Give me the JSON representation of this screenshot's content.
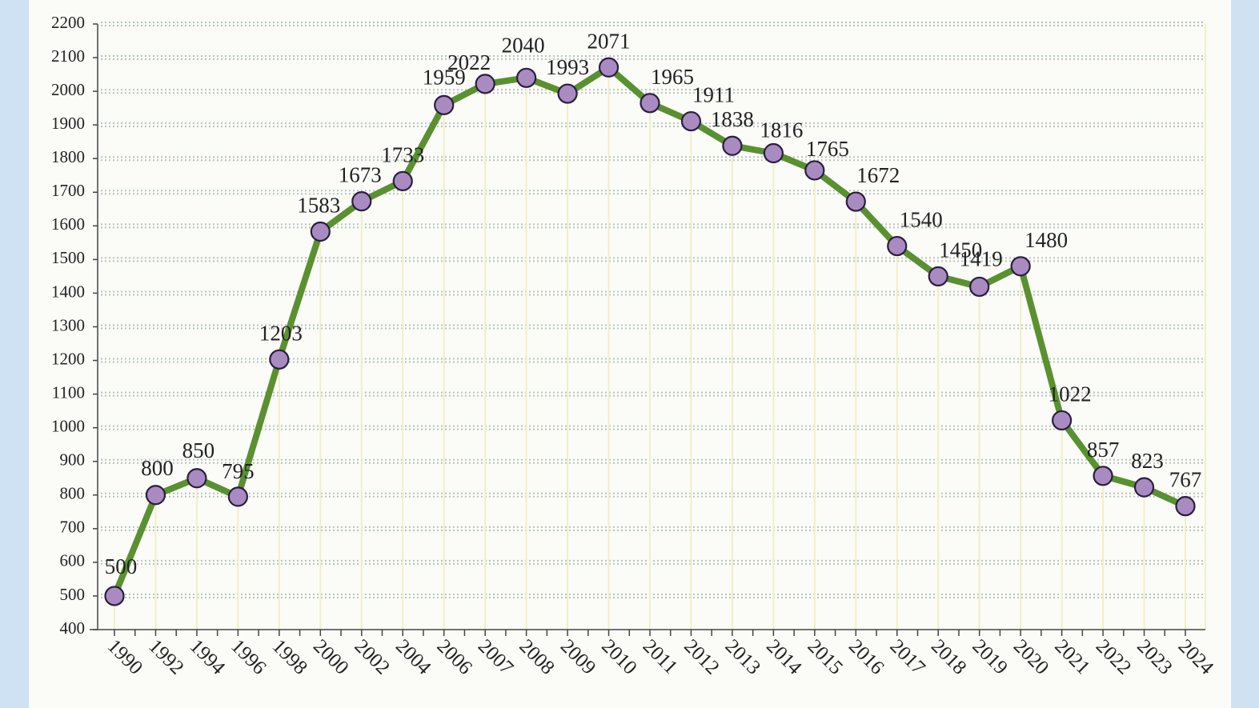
{
  "chart_data": {
    "type": "line",
    "title": "",
    "xlabel": "",
    "ylabel": "",
    "categories": [
      "1990",
      "1992",
      "1994",
      "1996",
      "1998",
      "2000",
      "2002",
      "2004",
      "2006",
      "2007",
      "2008",
      "2009",
      "2010",
      "2011",
      "2012",
      "2013",
      "2014",
      "2015",
      "2016",
      "2017",
      "2018",
      "2019",
      "2020",
      "2021",
      "2022",
      "2023",
      "2024"
    ],
    "series": [
      {
        "values": [
          500,
          800,
          850,
          795,
          1203,
          1583,
          1673,
          1733,
          1959,
          2022,
          2040,
          1993,
          2071,
          1965,
          1911,
          1838,
          1816,
          1765,
          1672,
          1540,
          1450,
          1419,
          1480,
          1022,
          857,
          823,
          767
        ]
      }
    ],
    "ylim": [
      400,
      2200
    ],
    "yticks": [
      400,
      500,
      600,
      700,
      800,
      900,
      1000,
      1100,
      1200,
      1300,
      1400,
      1500,
      1600,
      1700,
      1800,
      1900,
      2000,
      2100,
      2200
    ],
    "grid": true,
    "legend": "none",
    "colors": {
      "line": "#5a9130",
      "marker_fill": "#a98bc2",
      "marker_stroke": "#2a1f3d",
      "grid": "#b9c3bf",
      "vertical_guides": "#f1efc8"
    }
  }
}
